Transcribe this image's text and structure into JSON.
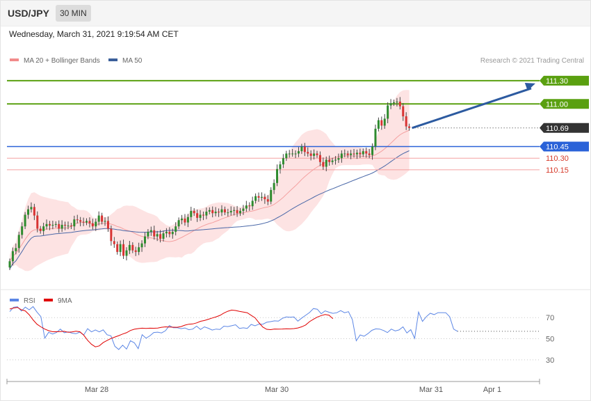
{
  "header": {
    "symbol": "USD/JPY",
    "timeframe": "30 MIN",
    "datetime": "Wednesday, March 31, 2021 9:19:54 AM CET"
  },
  "legend": {
    "price": [
      {
        "label": "MA 20 + Bollinger Bands",
        "color": "#f28b8b"
      },
      {
        "label": "MA 50",
        "color": "#3b5f9a"
      }
    ],
    "rsi": [
      {
        "label": "RSI",
        "color": "#5b86e5"
      },
      {
        "label": "9MA",
        "color": "#e00000"
      }
    ],
    "credit": "Research © 2021 Trading Central"
  },
  "colors": {
    "bull": "#2e8b2e",
    "bear": "#d83333",
    "band_fill": "#fde3e3",
    "ma20": "#f4a0a0",
    "ma50": "#4a68a8",
    "target": "#5aa010",
    "current": "#333333",
    "pivot": "#2a62d8",
    "support": "#f4a0a0",
    "support_text": "#d63a2a",
    "arrow": "#2c5aa0"
  },
  "chart_data": [
    {
      "type": "candlestick",
      "title": "USD/JPY",
      "timeframe": "30 MIN",
      "ylim": [
        109.08,
        111.38
      ],
      "x_ticks": [
        "Mar 28",
        "Mar 30",
        "Mar 31",
        "Apr 1"
      ],
      "close": [
        108.97,
        109.1,
        109.14,
        109.31,
        109.42,
        109.57,
        109.64,
        109.67,
        109.56,
        109.39,
        109.36,
        109.42,
        109.45,
        109.43,
        109.44,
        109.45,
        109.39,
        109.44,
        109.43,
        109.43,
        109.42,
        109.51,
        109.5,
        109.48,
        109.47,
        109.49,
        109.46,
        109.42,
        109.48,
        109.56,
        109.48,
        109.49,
        109.39,
        109.23,
        109.19,
        109.09,
        109.19,
        109.04,
        109.11,
        109.18,
        109.11,
        109.09,
        109.15,
        109.2,
        109.29,
        109.35,
        109.37,
        109.29,
        109.32,
        109.26,
        109.33,
        109.35,
        109.32,
        109.35,
        109.42,
        109.5,
        109.52,
        109.47,
        109.54,
        109.62,
        109.59,
        109.53,
        109.57,
        109.56,
        109.61,
        109.63,
        109.59,
        109.61,
        109.6,
        109.64,
        109.6,
        109.6,
        109.62,
        109.63,
        109.59,
        109.62,
        109.65,
        109.69,
        109.68,
        109.75,
        109.81,
        109.79,
        109.8,
        109.77,
        109.74,
        109.89,
        109.98,
        110.16,
        110.22,
        110.3,
        110.36,
        110.36,
        110.36,
        110.36,
        110.39,
        110.45,
        110.38,
        110.36,
        110.33,
        110.36,
        110.34,
        110.25,
        110.19,
        110.28,
        110.25,
        110.27,
        110.28,
        110.3,
        110.36,
        110.36,
        110.34,
        110.36,
        110.35,
        110.37,
        110.35,
        110.39,
        110.36,
        110.34,
        110.45,
        110.68,
        110.79,
        110.72,
        110.81,
        110.98,
        111.01,
        111.02,
        111.03,
        110.97,
        110.84,
        110.71,
        110.69
      ],
      "levels": [
        {
          "label": "111.30",
          "value": 111.3,
          "kind": "target"
        },
        {
          "label": "111.00",
          "value": 111.0,
          "kind": "target"
        },
        {
          "label": "110.69",
          "value": 110.69,
          "kind": "current"
        },
        {
          "label": "110.45",
          "value": 110.45,
          "kind": "pivot"
        },
        {
          "label": "110.30",
          "value": 110.3,
          "kind": "support"
        },
        {
          "label": "110.15",
          "value": 110.15,
          "kind": "support"
        }
      ],
      "series": [
        {
          "name": "MA 20 + Bollinger Bands"
        },
        {
          "name": "MA 50"
        }
      ]
    },
    {
      "type": "line",
      "ylim": [
        20,
        82
      ],
      "y_ticks": [
        "70",
        "50",
        "30"
      ],
      "series": [
        {
          "name": "RSI",
          "values": [
            75.7,
            79.8,
            80.2,
            76.2,
            79.9,
            77.4,
            80.4,
            75.2,
            70.9,
            50.5,
            56.1,
            54.4,
            55.9,
            59.1,
            55.7,
            56.5,
            55.3,
            54.7,
            56.3,
            53.5,
            59.5,
            56.5,
            58.3,
            56.5,
            58.4,
            53.8,
            52.7,
            42.8,
            39.8,
            43.9,
            40.2,
            48.1,
            46.1,
            40.6,
            53.8,
            50.5,
            52.7,
            55.9,
            56.2,
            55.5,
            57.6,
            62.4,
            60.4,
            60.4,
            59.5,
            60.2,
            58.5,
            59.1,
            61.9,
            58.7,
            61.2,
            59.9,
            58.2,
            59.1,
            58.8,
            61.9,
            61.5,
            62.3,
            63.2,
            59.8,
            60.3,
            59.8,
            63.5,
            62.2,
            63.8,
            63.7,
            65.6,
            66.2,
            66.9,
            66.6,
            69.3,
            70.6,
            70.4,
            70.6,
            66.6,
            69.6,
            72.2,
            74.8,
            78.6,
            77.9,
            73.6,
            76.4,
            75.1,
            74.0,
            74.6,
            76.6,
            74.6,
            75.6,
            68.1,
            48.0,
            53.6,
            52.3,
            54.8,
            57.9,
            59.3,
            59.1,
            57.8,
            55.8,
            59.1,
            57.4,
            58.3,
            61.2,
            55.4,
            58.6,
            50.3,
            75.3,
            66.4,
            70.9,
            74.1,
            72.8,
            74.7,
            74.7,
            74.6,
            70.8,
            59.1,
            57.0
          ]
        },
        {
          "name": "9MA",
          "values": [
            78.1,
            79.1,
            79.6,
            77.4,
            76.3,
            72.7,
            67.8,
            63.7,
            61.2,
            59.1,
            57.6,
            56.6,
            56.6,
            56.8,
            57.0,
            56.1,
            56.4,
            57.1,
            56.6,
            53.4,
            48.5,
            44.7,
            42.3,
            43.2,
            46.3,
            48.3,
            50.2,
            51.6,
            52.9,
            54.4,
            55.7,
            57.8,
            59.0,
            59.6,
            60.0,
            59.8,
            60.0,
            59.9,
            60.1,
            60.8,
            61.2,
            61.0,
            60.9,
            60.8,
            61.5,
            62.9,
            63.7,
            64.0,
            65.0,
            66.5,
            67.2,
            68.4,
            69.6,
            70.7,
            72.1,
            74.3,
            76.0,
            77.1,
            76.7,
            75.9,
            75.3,
            74.6,
            72.2,
            69.8,
            65.2,
            61.0,
            58.9,
            58.6,
            59.2,
            59.1,
            59.2,
            59.4,
            59.3,
            59.6,
            60.2,
            61.3,
            63.0,
            66.2,
            68.4,
            70.5,
            71.9,
            72.9,
            72.3,
            69.0
          ]
        }
      ]
    }
  ]
}
